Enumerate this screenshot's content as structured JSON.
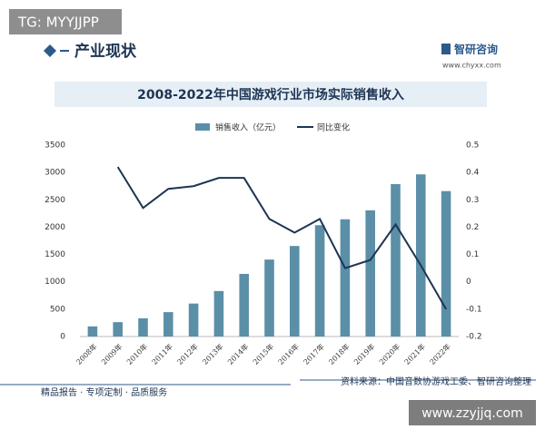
{
  "header": {
    "watermark": "TG: MYYJJPP",
    "section": "产业现状",
    "brand": "智研咨询",
    "url": "www.chyxx.com"
  },
  "chart_data": {
    "type": "bar",
    "title": "2008-2022年中国游戏行业市场实际销售收入",
    "categories": [
      "2008年",
      "2009年",
      "2010年",
      "2011年",
      "2012年",
      "2013年",
      "2014年",
      "2015年",
      "2016年",
      "2017年",
      "2018年",
      "2019年",
      "2020年",
      "2021年",
      "2022年"
    ],
    "series": [
      {
        "name": "销售收入（亿元）",
        "type": "bar",
        "color": "#5b8fa8",
        "values": [
          185,
          263,
          333,
          446,
          603,
          832,
          1145,
          1407,
          1656,
          2036,
          2144,
          2308,
          2787,
          2965,
          2659
        ]
      },
      {
        "name": "同比变化",
        "type": "line",
        "axis": "y2",
        "color": "#1d3553",
        "values": [
          null,
          0.42,
          0.27,
          0.34,
          0.35,
          0.38,
          0.38,
          0.23,
          0.18,
          0.23,
          0.05,
          0.08,
          0.21,
          0.06,
          -0.1
        ]
      }
    ],
    "ylim": [
      0,
      3500
    ],
    "yticks": [
      0,
      500,
      1000,
      1500,
      2000,
      2500,
      3000,
      3500
    ],
    "y2lim": [
      -0.2,
      0.5
    ],
    "y2ticks": [
      -0.2,
      -0.1,
      0,
      0.1,
      0.2,
      0.3,
      0.4,
      0.5
    ],
    "grid": false,
    "legend": "top"
  },
  "footer": {
    "source": "资料来源：中国音数协游戏工委、智研咨询整理",
    "slogan": "精品报告 · 专项定制 · 品质服务",
    "watermark": "www.zzyjjq.com"
  }
}
